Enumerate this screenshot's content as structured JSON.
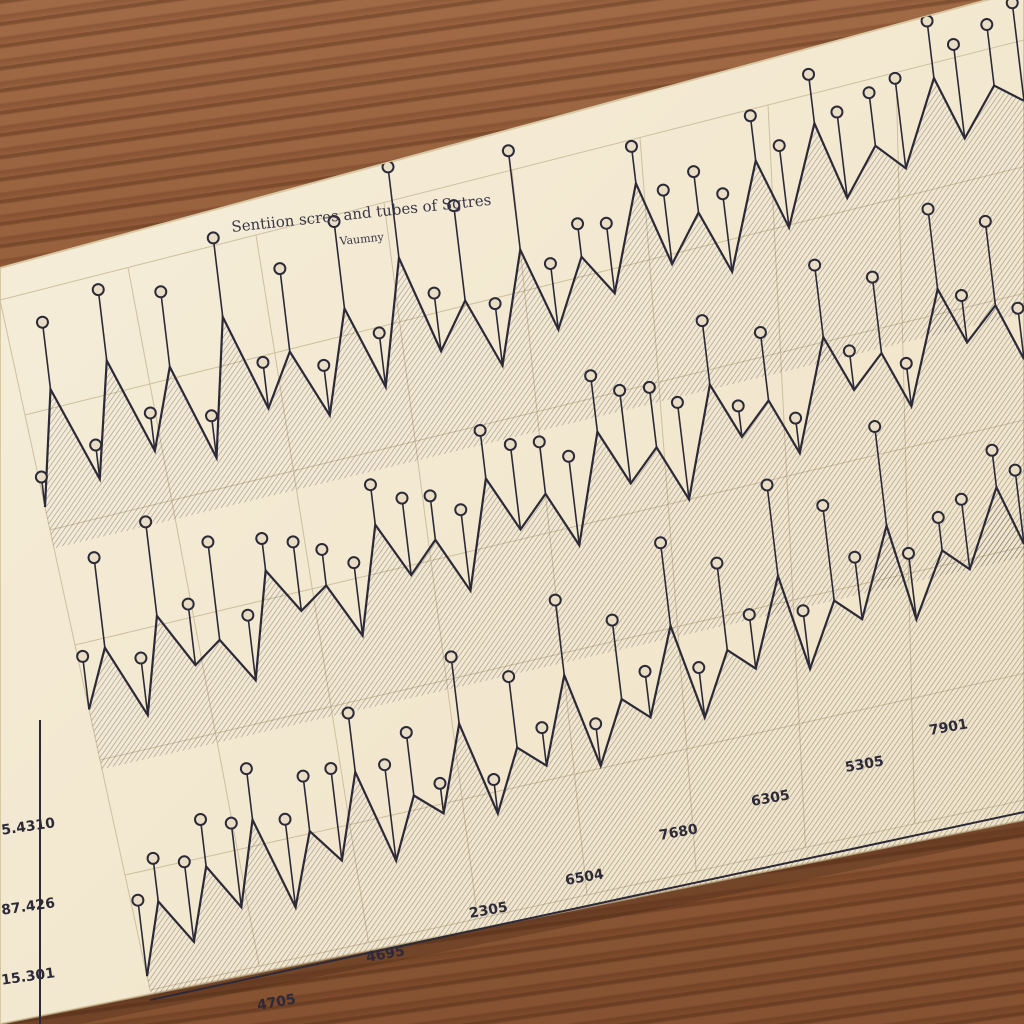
{
  "chart_data": {
    "type": "line",
    "title": "Sentiion scres and tubes of Sgtres",
    "legend_label": "Vaumny",
    "y_tick_labels": [
      "15.301",
      "87.426",
      "5.4310"
    ],
    "x_tick_labels": [
      "4705",
      "4695",
      "2305",
      "6504",
      "7680",
      "6305",
      "5305",
      "7901"
    ],
    "grid": true,
    "series": [
      {
        "values": [
          2,
          18,
          4,
          20,
          6,
          17,
          3,
          22,
          8,
          15,
          5,
          19,
          7,
          24,
          10,
          16,
          6,
          21,
          9,
          18,
          12,
          26,
          14,
          20,
          11,
          25,
          15,
          28,
          17,
          23,
          19,
          30,
          21,
          27,
          24
        ]
      },
      {
        "values": [
          6,
          12,
          4,
          14,
          8,
          10,
          5,
          16,
          11,
          13,
          7,
          18,
          12,
          15,
          9,
          20,
          14,
          17,
          11,
          22,
          16,
          19,
          13,
          24,
          18,
          21,
          15,
          26,
          20,
          23,
          17,
          28,
          22,
          25,
          19
        ]
      },
      {
        "values": [
          3,
          9,
          5,
          11,
          7,
          14,
          6,
          12,
          9,
          16,
          8,
          13,
          11,
          18,
          10,
          15,
          13,
          20,
          12,
          17,
          15,
          22,
          14,
          19,
          17,
          24,
          16,
          21,
          19,
          26,
          18,
          23,
          21,
          27,
          22
        ]
      }
    ],
    "colors": {
      "ink": "#2c2a38",
      "paper": "#f4ead2",
      "shade": "#5a5560",
      "wood": "#8a5634"
    }
  }
}
